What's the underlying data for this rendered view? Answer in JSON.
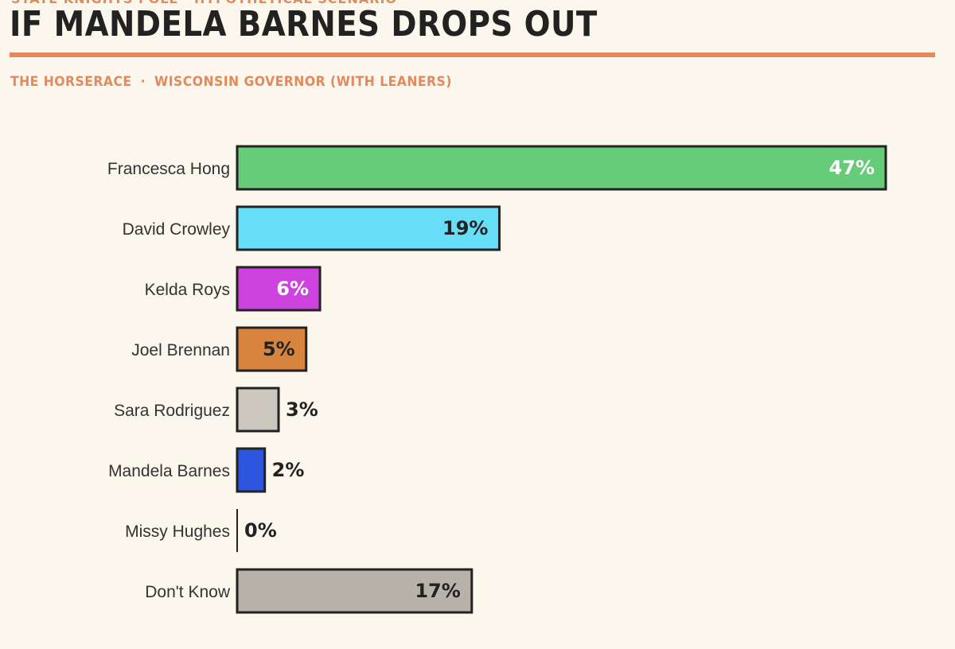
{
  "header": {
    "kicker": "STATE KNIGHTS POLL · HYPOTHETICAL SCENARIO",
    "title": "IF MANDELA BARNES DROPS OUT",
    "subtitle_left": "THE HORSERACE",
    "subtitle_sep": "·",
    "subtitle_right": "WISCONSIN GOVERNOR (WITH LEANERS)"
  },
  "chart_data": {
    "type": "bar",
    "orientation": "horizontal",
    "categories": [
      "Francesca Hong",
      "David Crowley",
      "Kelda Roys",
      "Joel Brennan",
      "Sara Rodriguez",
      "Mandela Barnes",
      "Missy Hughes",
      "Don't Know"
    ],
    "values": [
      47,
      19,
      6,
      5,
      3,
      2,
      0,
      17
    ],
    "value_labels": [
      "47%",
      "19%",
      "6%",
      "5%",
      "3%",
      "2%",
      "0%",
      "17%"
    ],
    "colors": [
      "#66cc7a",
      "#66def8",
      "#cc44dd",
      "#d9843e",
      "#ccc7be",
      "#2e55dd",
      "#ccc7be",
      "#b8b3aa"
    ],
    "label_colors": [
      "#ffffff",
      "#222222",
      "#ffffff",
      "#222222",
      "#222222",
      "#222222",
      "#222222",
      "#222222"
    ],
    "xlim": [
      0,
      47
    ],
    "grid": false,
    "legend": "none"
  }
}
